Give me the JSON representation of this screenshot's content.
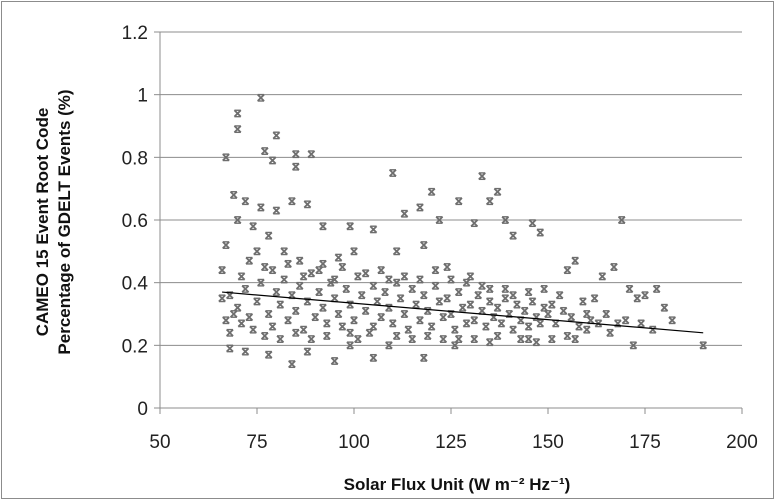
{
  "chart_data": {
    "type": "scatter",
    "title": "",
    "xlabel": "Solar Flux Unit (W m⁻² Hz⁻¹)",
    "ylabel_line1": "CAMEO 15 Event Root Code",
    "ylabel_line2": "Percentage of GDELT Events (%)",
    "xlim": [
      50,
      200
    ],
    "ylim": [
      0,
      1.2
    ],
    "xticks": [
      "50",
      "75",
      "100",
      "125",
      "150",
      "175",
      "200"
    ],
    "yticks": [
      "0",
      "0.2",
      "0.4",
      "0.6",
      "0.8",
      "1",
      "1.2"
    ],
    "grid": "horizontal",
    "legend": "none",
    "marker_color": "#6e6e6e",
    "trendline_color": "#000000",
    "trendline": {
      "x": [
        66,
        190
      ],
      "y": [
        0.37,
        0.24
      ]
    },
    "series": [
      {
        "values_note": "",
        "points": [
          [
            67,
            0.8
          ],
          [
            70,
            0.94
          ],
          [
            70,
            0.89
          ],
          [
            76,
            0.99
          ],
          [
            77,
            0.82
          ],
          [
            80,
            0.87
          ],
          [
            79,
            0.79
          ],
          [
            85,
            0.81
          ],
          [
            85,
            0.77
          ],
          [
            89,
            0.81
          ],
          [
            69,
            0.68
          ],
          [
            72,
            0.66
          ],
          [
            76,
            0.64
          ],
          [
            80,
            0.63
          ],
          [
            84,
            0.66
          ],
          [
            88,
            0.65
          ],
          [
            92,
            0.58
          ],
          [
            99,
            0.58
          ],
          [
            105,
            0.57
          ],
          [
            110,
            0.75
          ],
          [
            113,
            0.62
          ],
          [
            117,
            0.64
          ],
          [
            120,
            0.69
          ],
          [
            122,
            0.6
          ],
          [
            127,
            0.66
          ],
          [
            131,
            0.59
          ],
          [
            133,
            0.74
          ],
          [
            135,
            0.66
          ],
          [
            137,
            0.69
          ],
          [
            139,
            0.6
          ],
          [
            141,
            0.55
          ],
          [
            146,
            0.59
          ],
          [
            148,
            0.56
          ],
          [
            155,
            0.44
          ],
          [
            157,
            0.47
          ],
          [
            164,
            0.42
          ],
          [
            167,
            0.45
          ],
          [
            169,
            0.6
          ],
          [
            171,
            0.38
          ],
          [
            173,
            0.35
          ],
          [
            175,
            0.36
          ],
          [
            178,
            0.38
          ],
          [
            180,
            0.32
          ],
          [
            182,
            0.28
          ],
          [
            177,
            0.25
          ],
          [
            172,
            0.2
          ],
          [
            190,
            0.2
          ],
          [
            160,
            0.3
          ],
          [
            163,
            0.27
          ],
          [
            151,
            0.33
          ],
          [
            84,
            0.14
          ],
          [
            95,
            0.15
          ],
          [
            105,
            0.16
          ],
          [
            118,
            0.16
          ],
          [
            68,
            0.19
          ],
          [
            72,
            0.18
          ],
          [
            78,
            0.17
          ],
          [
            88,
            0.18
          ],
          [
            99,
            0.2
          ],
          [
            109,
            0.2
          ],
          [
            126,
            0.2
          ],
          [
            135,
            0.21
          ],
          [
            145,
            0.22
          ],
          [
            155,
            0.23
          ],
          [
            160,
            0.25
          ],
          [
            130,
            0.42
          ],
          [
            124,
            0.45
          ],
          [
            118,
            0.52
          ],
          [
            111,
            0.5
          ],
          [
            100,
            0.5
          ],
          [
            96,
            0.48
          ],
          [
            92,
            0.46
          ],
          [
            86,
            0.47
          ],
          [
            82,
            0.5
          ],
          [
            78,
            0.55
          ],
          [
            74,
            0.58
          ],
          [
            70,
            0.6
          ],
          [
            67,
            0.52
          ],
          [
            66,
            0.44
          ],
          [
            66,
            0.35
          ],
          [
            67,
            0.28
          ],
          [
            68,
            0.24
          ],
          [
            70,
            0.32
          ],
          [
            71,
            0.42
          ],
          [
            72,
            0.38
          ],
          [
            73,
            0.29
          ],
          [
            74,
            0.25
          ],
          [
            75,
            0.34
          ],
          [
            76,
            0.4
          ],
          [
            77,
            0.45
          ],
          [
            78,
            0.3
          ],
          [
            79,
            0.26
          ],
          [
            80,
            0.37
          ],
          [
            81,
            0.33
          ],
          [
            82,
            0.41
          ],
          [
            83,
            0.28
          ],
          [
            84,
            0.36
          ],
          [
            85,
            0.31
          ],
          [
            86,
            0.39
          ],
          [
            87,
            0.25
          ],
          [
            88,
            0.34
          ],
          [
            89,
            0.43
          ],
          [
            90,
            0.29
          ],
          [
            91,
            0.37
          ],
          [
            92,
            0.32
          ],
          [
            93,
            0.27
          ],
          [
            94,
            0.4
          ],
          [
            95,
            0.35
          ],
          [
            96,
            0.3
          ],
          [
            97,
            0.26
          ],
          [
            98,
            0.38
          ],
          [
            99,
            0.33
          ],
          [
            100,
            0.28
          ],
          [
            101,
            0.42
          ],
          [
            102,
            0.36
          ],
          [
            103,
            0.31
          ],
          [
            104,
            0.24
          ],
          [
            105,
            0.39
          ],
          [
            106,
            0.34
          ],
          [
            107,
            0.29
          ],
          [
            108,
            0.37
          ],
          [
            109,
            0.32
          ],
          [
            110,
            0.27
          ],
          [
            111,
            0.4
          ],
          [
            112,
            0.35
          ],
          [
            113,
            0.3
          ],
          [
            114,
            0.25
          ],
          [
            115,
            0.38
          ],
          [
            116,
            0.33
          ],
          [
            117,
            0.28
          ],
          [
            118,
            0.36
          ],
          [
            119,
            0.31
          ],
          [
            120,
            0.26
          ],
          [
            121,
            0.39
          ],
          [
            122,
            0.34
          ],
          [
            123,
            0.29
          ],
          [
            124,
            0.35
          ],
          [
            125,
            0.3
          ],
          [
            126,
            0.25
          ],
          [
            127,
            0.37
          ],
          [
            128,
            0.32
          ],
          [
            129,
            0.27
          ],
          [
            130,
            0.33
          ],
          [
            131,
            0.28
          ],
          [
            132,
            0.36
          ],
          [
            133,
            0.31
          ],
          [
            134,
            0.26
          ],
          [
            135,
            0.34
          ],
          [
            136,
            0.29
          ],
          [
            137,
            0.32
          ],
          [
            138,
            0.27
          ],
          [
            139,
            0.35
          ],
          [
            140,
            0.3
          ],
          [
            141,
            0.25
          ],
          [
            142,
            0.33
          ],
          [
            143,
            0.28
          ],
          [
            144,
            0.31
          ],
          [
            145,
            0.26
          ],
          [
            146,
            0.34
          ],
          [
            147,
            0.29
          ],
          [
            148,
            0.27
          ],
          [
            149,
            0.32
          ],
          [
            150,
            0.3
          ],
          [
            152,
            0.27
          ],
          [
            154,
            0.31
          ],
          [
            156,
            0.29
          ],
          [
            158,
            0.26
          ],
          [
            161,
            0.28
          ],
          [
            165,
            0.3
          ],
          [
            168,
            0.27
          ],
          [
            68,
            0.36
          ],
          [
            69,
            0.3
          ],
          [
            71,
            0.27
          ],
          [
            73,
            0.47
          ],
          [
            75,
            0.5
          ],
          [
            77,
            0.23
          ],
          [
            79,
            0.44
          ],
          [
            81,
            0.22
          ],
          [
            83,
            0.46
          ],
          [
            85,
            0.24
          ],
          [
            87,
            0.42
          ],
          [
            89,
            0.22
          ],
          [
            91,
            0.44
          ],
          [
            93,
            0.23
          ],
          [
            95,
            0.41
          ],
          [
            97,
            0.45
          ],
          [
            99,
            0.24
          ],
          [
            101,
            0.22
          ],
          [
            103,
            0.43
          ],
          [
            105,
            0.26
          ],
          [
            107,
            0.44
          ],
          [
            109,
            0.41
          ],
          [
            111,
            0.23
          ],
          [
            113,
            0.42
          ],
          [
            115,
            0.22
          ],
          [
            117,
            0.41
          ],
          [
            119,
            0.23
          ],
          [
            121,
            0.44
          ],
          [
            123,
            0.22
          ],
          [
            125,
            0.41
          ],
          [
            127,
            0.22
          ],
          [
            129,
            0.4
          ],
          [
            131,
            0.22
          ],
          [
            133,
            0.39
          ],
          [
            135,
            0.38
          ],
          [
            137,
            0.23
          ],
          [
            139,
            0.38
          ],
          [
            141,
            0.36
          ],
          [
            143,
            0.22
          ],
          [
            145,
            0.37
          ],
          [
            147,
            0.21
          ],
          [
            149,
            0.38
          ],
          [
            151,
            0.22
          ],
          [
            153,
            0.36
          ],
          [
            157,
            0.22
          ],
          [
            159,
            0.34
          ],
          [
            162,
            0.35
          ],
          [
            166,
            0.24
          ],
          [
            170,
            0.28
          ],
          [
            174,
            0.27
          ]
        ]
      }
    ]
  }
}
